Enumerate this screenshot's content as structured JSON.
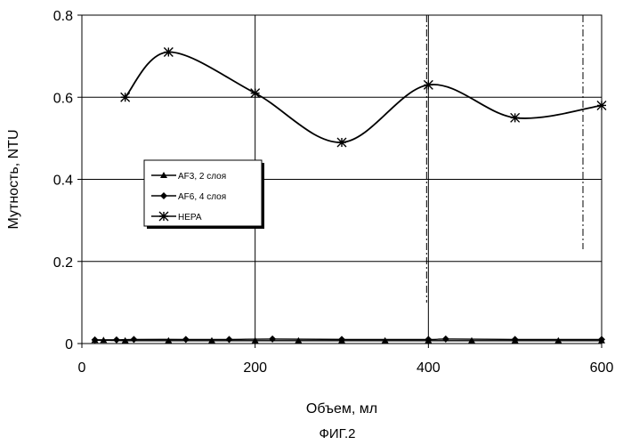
{
  "caption": "ФИГ.2",
  "chart_data": {
    "type": "line",
    "title": "",
    "xlabel": "Объем, мл",
    "ylabel": "Мутность, NTU",
    "xlim": [
      0,
      600
    ],
    "ylim": [
      0,
      0.8
    ],
    "x_ticks": [
      0,
      200,
      400,
      600
    ],
    "x_tick_labels": [
      "0",
      "200",
      "400",
      "600"
    ],
    "y_ticks": [
      0,
      0.2,
      0.4,
      0.6,
      0.8
    ],
    "y_tick_labels": [
      "0",
      "0.2",
      "0.4",
      "0.6",
      "0.8"
    ],
    "grid": "horizontal and vertical at major ticks",
    "legend_position": "center-left",
    "series": [
      {
        "name": "AF3, 2 слоя",
        "marker": "triangle",
        "color": "#000000",
        "x": [
          15,
          25,
          50,
          100,
          150,
          200,
          250,
          300,
          350,
          400,
          450,
          500,
          550,
          600
        ],
        "y": [
          0.008,
          0.008,
          0.007,
          0.007,
          0.007,
          0.007,
          0.007,
          0.007,
          0.007,
          0.007,
          0.007,
          0.007,
          0.007,
          0.007
        ]
      },
      {
        "name": "AF6, 4 слоя",
        "marker": "diamond",
        "color": "#000000",
        "x": [
          15,
          40,
          60,
          120,
          170,
          220,
          300,
          400,
          420,
          500,
          600
        ],
        "y": [
          0.009,
          0.009,
          0.01,
          0.01,
          0.01,
          0.011,
          0.01,
          0.01,
          0.011,
          0.01,
          0.01
        ]
      },
      {
        "name": "HEPA",
        "marker": "star",
        "color": "#000000",
        "x": [
          50,
          100,
          200,
          300,
          400,
          500,
          600
        ],
        "y": [
          0.6,
          0.71,
          0.61,
          0.49,
          0.63,
          0.55,
          0.58
        ]
      }
    ]
  }
}
